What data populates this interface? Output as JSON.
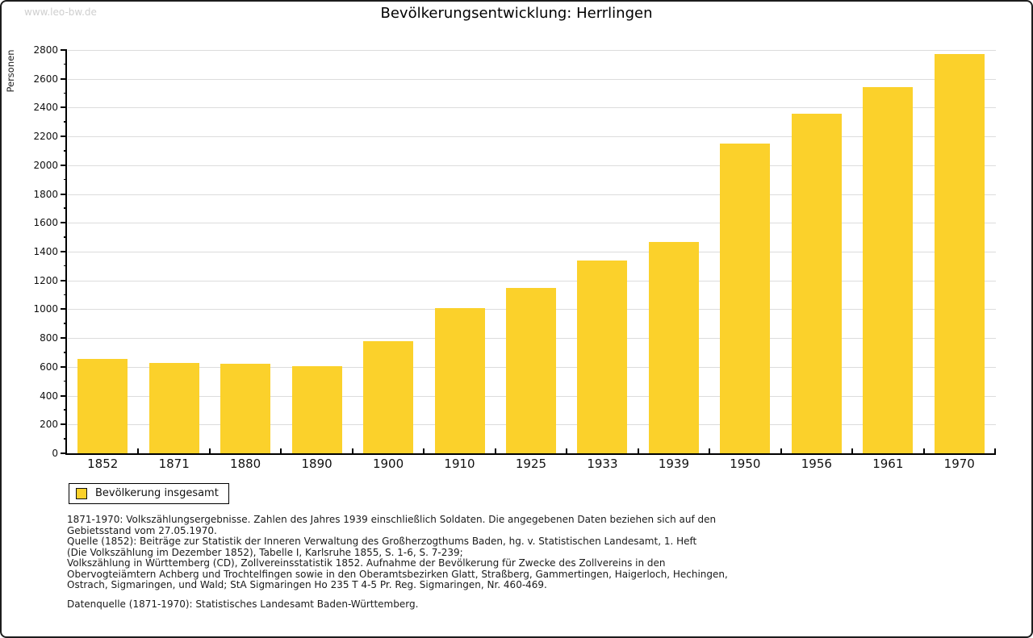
{
  "page": {
    "watermark": "www.leo-bw.de"
  },
  "chart_data": {
    "type": "bar",
    "title": "Bevölkerungsentwicklung: Herrlingen",
    "xlabel": "",
    "ylabel": "Personen",
    "categories": [
      "1852",
      "1871",
      "1880",
      "1890",
      "1900",
      "1910",
      "1925",
      "1933",
      "1939",
      "1950",
      "1956",
      "1961",
      "1970"
    ],
    "series": [
      {
        "name": "Bevölkerung insgesamt",
        "values": [
          655,
          625,
          620,
          605,
          780,
          1010,
          1150,
          1340,
          1470,
          2150,
          2360,
          2540,
          2770
        ]
      }
    ],
    "ylim": [
      0,
      2800
    ],
    "ytick_step": 200,
    "minor_tick_step": 100,
    "grid": true,
    "legend_position": "bottom-left",
    "bar_color": "#FBD12B",
    "grid_color": "#DCDCDC",
    "axis_color": "#000000"
  },
  "legend": {
    "label": "Bevölkerung insgesamt"
  },
  "footnotes": {
    "lines": [
      "1871-1970: Volkszählungsergebnisse. Zahlen des Jahres 1939 einschließlich Soldaten. Die angegebenen Daten beziehen sich auf den",
      "Gebietsstand vom 27.05.1970.",
      "Quelle (1852): Beiträge zur Statistik der Inneren Verwaltung des Großherzogthums Baden, hg. v. Statistischen Landesamt, 1. Heft",
      "(Die Volkszählung im Dezember 1852), Tabelle I, Karlsruhe 1855, S. 1-6, S. 7-239;",
      "Volkszählung in Württemberg (CD), Zollvereinsstatistik 1852. Aufnahme der Bevölkerung für Zwecke des Zollvereins in den",
      "Obervogteiämtern Achberg und Trochtelfingen sowie in den Oberamtsbezirken Glatt, Straßberg, Gammertingen, Haigerloch, Hechingen,",
      "Ostrach, Sigmaringen, und Wald; StA Sigmaringen Ho 235 T 4-5 Pr. Reg. Sigmaringen, Nr. 460-469."
    ],
    "datasource": "Datenquelle (1871-1970): Statistisches Landesamt Baden-Württemberg."
  }
}
